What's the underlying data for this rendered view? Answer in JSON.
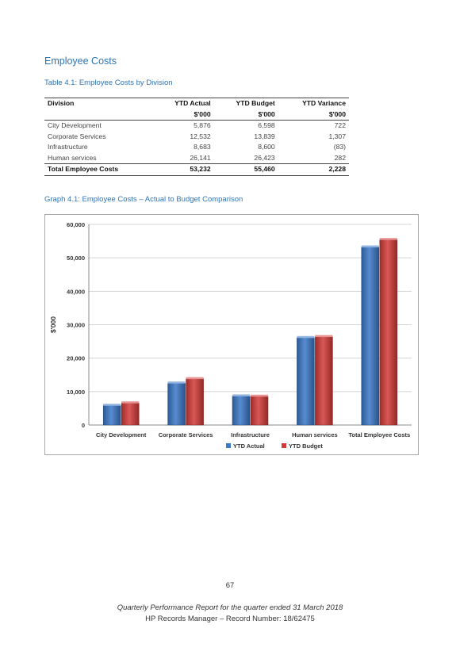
{
  "section_title": "Employee Costs",
  "table_caption": "Table 4.1: Employee Costs by Division",
  "table": {
    "headers": [
      "Division",
      "YTD Actual",
      "YTD Budget",
      "YTD Variance"
    ],
    "units": [
      "",
      "$'000",
      "$'000",
      "$'000"
    ],
    "rows": [
      [
        "City Development",
        "5,876",
        "6,598",
        "722"
      ],
      [
        "Corporate Services",
        "12,532",
        "13,839",
        "1,307"
      ],
      [
        "Infrastructure",
        "8,683",
        "8,600",
        "(83)"
      ],
      [
        "Human services",
        "26,141",
        "26,423",
        "282"
      ]
    ],
    "total": [
      "Total Employee Costs",
      "53,232",
      "55,460",
      "2,228"
    ]
  },
  "graph_caption": "Graph 4.1: Employee Costs – Actual to Budget Comparison",
  "chart_data": {
    "type": "bar",
    "categories": [
      "City Development",
      "Corporate Services",
      "Infrastructure",
      "Human services",
      "Total Employee Costs"
    ],
    "series": [
      {
        "name": "YTD Actual",
        "color": "#3a78c8",
        "values": [
          5876,
          12532,
          8683,
          26141,
          53232
        ]
      },
      {
        "name": "YTD Budget",
        "color": "#d23a38",
        "values": [
          6598,
          13839,
          8600,
          26423,
          55460
        ]
      }
    ],
    "ylabel": "$'000",
    "ylim": [
      0,
      60000
    ],
    "yticks": [
      0,
      10000,
      20000,
      30000,
      40000,
      50000,
      60000
    ],
    "ytick_labels": [
      "0",
      "10,000",
      "20,000",
      "30,000",
      "40,000",
      "50,000",
      "60,000"
    ],
    "grid": true,
    "legend_position": "bottom"
  },
  "page_number": "67",
  "footer": {
    "line1": "Quarterly Performance Report for the quarter ended 31 March 2018",
    "line2": "HP Records Manager – Record Number: 18/62475"
  }
}
